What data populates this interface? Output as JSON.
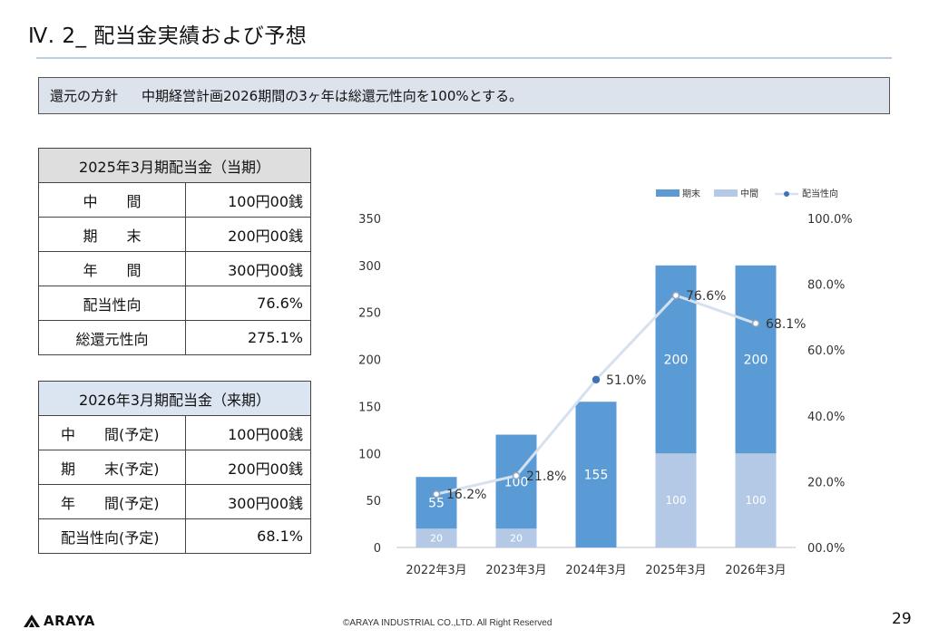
{
  "header": {
    "title": "Ⅳ. 2_ 配当金実績および予想"
  },
  "policy": {
    "label": "還元の方針",
    "text": "中期経営計画2026期間の3ヶ年は総還元性向を100%とする。"
  },
  "table_current": {
    "title": "2025年3月期配当金（当期）",
    "rows": [
      {
        "label": "中　　間",
        "value": "100円00銭"
      },
      {
        "label": "期　　末",
        "value": "200円00銭"
      },
      {
        "label": "年　　間",
        "value": "300円00銭"
      },
      {
        "label": "配当性向",
        "value": "76.6%"
      },
      {
        "label": "総還元性向",
        "value": "275.1%"
      }
    ]
  },
  "table_next": {
    "title": "2026年3月期配当金（来期）",
    "rows": [
      {
        "label": "中　　間(予定)",
        "value": "100円00銭"
      },
      {
        "label": "期　　末(予定)",
        "value": "200円00銭"
      },
      {
        "label": "年　　間(予定)",
        "value": "300円00銭"
      },
      {
        "label": "配当性向(予定)",
        "value": "68.1%"
      }
    ]
  },
  "chart_data": {
    "type": "bar",
    "stacked": true,
    "categories": [
      "2022年3月",
      "2023年3月",
      "2024年3月",
      "2025年3月",
      "2026年3月"
    ],
    "series": [
      {
        "name": "中間",
        "kind": "bar",
        "values": [
          20,
          20,
          0,
          100,
          100
        ],
        "labels": [
          "20",
          "20",
          "",
          "100",
          "100"
        ],
        "color": "#b3c9e6"
      },
      {
        "name": "期末",
        "kind": "bar",
        "values": [
          55,
          100,
          155,
          200,
          200
        ],
        "labels": [
          "55",
          "100",
          "155",
          "200",
          "200"
        ],
        "color": "#5b9bd5"
      },
      {
        "name": "配当性向",
        "kind": "line",
        "axis": "right",
        "values": [
          16.2,
          21.8,
          51.0,
          76.6,
          68.1
        ],
        "labels": [
          "16.2%",
          "21.8%",
          "51.0%",
          "76.6%",
          "68.1%"
        ],
        "color": "#d6e1f0",
        "marker_color": "#3d72b8"
      }
    ],
    "y_left": {
      "ticks": [
        "0",
        "50",
        "100",
        "150",
        "200",
        "250",
        "300",
        "350"
      ],
      "range": [
        0,
        350
      ]
    },
    "y_right": {
      "ticks": [
        "00.0%",
        "20.0%",
        "40.0%",
        "60.0%",
        "80.0%",
        "100.0%"
      ],
      "range": [
        0,
        100
      ]
    },
    "legend_position": "top-right",
    "grid": false
  },
  "footer": {
    "logo_text": "ARAYA",
    "copyright": "©ARAYA INDUSTRIAL CO.,LTD. All Right Reserved",
    "page": "29"
  }
}
